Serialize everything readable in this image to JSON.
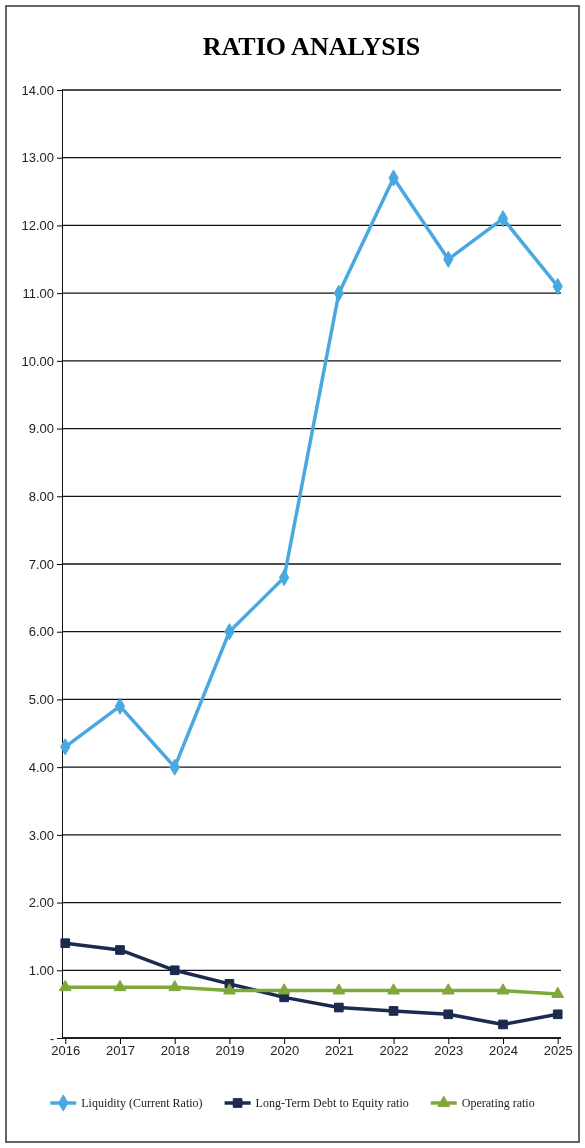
{
  "chart_data": {
    "type": "line",
    "title": "RATIO ANALYSIS",
    "categories": [
      "2016",
      "2017",
      "2018",
      "2019",
      "2020",
      "2021",
      "2022",
      "2023",
      "2024",
      "2025"
    ],
    "series": [
      {
        "name": "Liquidity (Current Ratio)",
        "color": "#4aa8e0",
        "marker": "diamond",
        "values": [
          4.3,
          4.9,
          4.0,
          6.0,
          6.8,
          11.0,
          12.7,
          11.5,
          12.1,
          11.1
        ]
      },
      {
        "name": "Long-Term Debt to Equity ratio",
        "color": "#1b2a4e",
        "marker": "square",
        "values": [
          1.4,
          1.3,
          1.0,
          0.8,
          0.6,
          0.45,
          0.4,
          0.35,
          0.2,
          0.35
        ]
      },
      {
        "name": "Operating ratio",
        "color": "#7ea83a",
        "marker": "triangle",
        "values": [
          0.75,
          0.75,
          0.75,
          0.7,
          0.7,
          0.7,
          0.7,
          0.7,
          0.7,
          0.65
        ]
      }
    ],
    "ylim": [
      0,
      14
    ],
    "yticks": [
      {
        "value": 0,
        "label": "-"
      },
      {
        "value": 1,
        "label": "1.00"
      },
      {
        "value": 2,
        "label": "2.00"
      },
      {
        "value": 3,
        "label": "3.00"
      },
      {
        "value": 4,
        "label": "4.00"
      },
      {
        "value": 5,
        "label": "5.00"
      },
      {
        "value": 6,
        "label": "6.00"
      },
      {
        "value": 7,
        "label": "7.00"
      },
      {
        "value": 8,
        "label": "8.00"
      },
      {
        "value": 9,
        "label": "9.00"
      },
      {
        "value": 10,
        "label": "10.00"
      },
      {
        "value": 11,
        "label": "11.00"
      },
      {
        "value": 12,
        "label": "12.00"
      },
      {
        "value": 13,
        "label": "13.00"
      },
      {
        "value": 14,
        "label": "14.00"
      }
    ],
    "grid": "y",
    "legend": "bottom"
  }
}
